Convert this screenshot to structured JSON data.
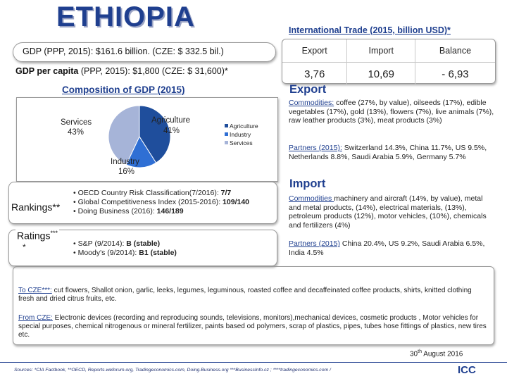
{
  "title": "ETHIOPIA",
  "gdp": {
    "line1_label": "GDP",
    "line1_value": " (PPP, 2015): $161.6 billion. (CZE: $ 332.5 bil.)",
    "line2_label": "GDP per capita",
    "line2_value": " (PPP, 2015): $1,800 (CZE: $ 31,600)*"
  },
  "trade": {
    "title": "International Trade (2015, billion USD)*",
    "headers": [
      "Export",
      "Import",
      "Balance"
    ],
    "values": [
      "3,76",
      "10,69",
      "- 6,93"
    ]
  },
  "composition": {
    "title": "Composition of GDP (2015)",
    "label_services": "Services",
    "label_services_pct": "43%",
    "label_agriculture": "Agriculture",
    "label_agriculture_pct": "41%",
    "label_industry": "Industry",
    "label_industry_pct": "16%"
  },
  "chart_data": {
    "type": "pie",
    "title": "Composition of GDP (2015)",
    "categories": [
      "Agriculture",
      "Industry",
      "Services"
    ],
    "values": [
      41,
      16,
      43
    ],
    "colors": [
      "#1f4e9c",
      "#2f6fd4",
      "#a6b4d8"
    ],
    "legend": [
      "Agriculture",
      "Industry",
      "Services"
    ],
    "legend_position": "right"
  },
  "rankings": {
    "label": "Rankings**",
    "items": [
      {
        "text": "• OECD  Country Risk Classification(7/2016): ",
        "value": "7/7"
      },
      {
        "text": "• Global Competitiveness Index (2015-2016): ",
        "value": "109/140"
      },
      {
        "text": "• Doing Business (2016):  ",
        "value": "146/189"
      }
    ]
  },
  "ratings": {
    "label": "Ratings",
    "sup": "***",
    "star": "*",
    "items": [
      {
        "text": "• S&P (9/2014): ",
        "value": "B (stable)"
      },
      {
        "text": "• Moody's (9/2014): ",
        "value": "B1 (stable)"
      }
    ]
  },
  "export": {
    "heading": "Export",
    "commodities_label": "Commodities:",
    "commodities_text": " coffee (27%, by value), oilseeds (17%), edible vegetables (17%), gold (13%), flowers (7%), live animals (7%), raw leather products (3%), meat products (3%)",
    "partners_label": "Partners (2015):",
    "partners_text": " Switzerland 14.3%, China 11.7%, US 9.5%, Netherlands 8.8%, Saudi Arabia 5.9%, Germany 5.7%"
  },
  "import": {
    "heading": "Import",
    "commodities_label": "Commodities ",
    "commodities_text": "machinery and aircraft (14%, by value), metal and metal products, (14%), electrical materials, (13%), petroleum products (12%), motor vehicles, (10%), chemicals and fertilizers (4%)",
    "partners_label": "Partners (2015)",
    "partners_text": " China 20.4%, US 9.2%, Saudi Arabia 6.5%, India 4.5%"
  },
  "bottom": {
    "to_cze_label": "To CZE***:",
    "to_cze_text": " cut flowers, Shallot onion, garlic, leeks, legumes, leguminous, roasted coffee and decaffeinated coffee products, shirts, knitted clothing fresh  and dried citrus fruits, etc.",
    "from_cze_label": "From CZE:",
    "from_cze_text": " Electronic devices (recording and reproducing sounds, televisions, monitors),mechanical devices, cosmetic products , Motor vehicles for special purposes, chemical nitrogenous or mineral fertilizer, paints based od polymers, scrap of plastics, pipes, tubes hose fittings of plastics, new tires etc.",
    "date_day": "30",
    "date_sup": "th",
    "date_rest": " August 2016"
  },
  "footer": {
    "sources": "Sources: *CIA Factbook, **OECD, Reports.weforum.org, Tradingeconomics.com, Doing.Business.org ***BusinessInfo.cz ; ****tradingeconomics.com /",
    "logo": "ICC"
  }
}
